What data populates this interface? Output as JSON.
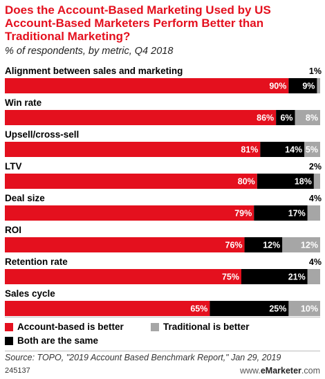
{
  "title": "Does the Account-Based Marketing Used by US Account-Based Marketers Perform Better than Traditional Marketing?",
  "subtitle": "% of respondents, by metric, Q4 2018",
  "source": "Source: TOPO, \"2019 Account Based Benchmark Report,\" Jan 29, 2019",
  "chart_id": "245137",
  "brand_prefix": "www.",
  "brand_name": "eMarketer",
  "brand_suffix": ".com",
  "colors": {
    "account_based": "#e4101e",
    "same": "#000000",
    "traditional": "#a6a6a6"
  },
  "legend": {
    "account_based": "Account-based is better",
    "traditional": "Traditional is better",
    "same": "Both are the same"
  },
  "chart_data": {
    "type": "bar",
    "orientation": "horizontal",
    "stacked": true,
    "categories": [
      "Alignment between sales and marketing",
      "Win rate",
      "Upsell/cross-sell",
      "LTV",
      "Deal size",
      "ROI",
      "Retention rate",
      "Sales cycle"
    ],
    "series": [
      {
        "name": "Account-based is better",
        "values": [
          90,
          86,
          81,
          80,
          79,
          76,
          75,
          65
        ]
      },
      {
        "name": "Both are the same",
        "values": [
          9,
          6,
          14,
          18,
          17,
          12,
          21,
          25
        ]
      },
      {
        "name": "Traditional is better",
        "values": [
          1,
          8,
          5,
          2,
          4,
          12,
          4,
          10
        ]
      }
    ],
    "value_labels": [
      [
        "90%",
        "86%",
        "81%",
        "80%",
        "79%",
        "76%",
        "75%",
        "65%"
      ],
      [
        "9%",
        "6%",
        "14%",
        "18%",
        "17%",
        "12%",
        "21%",
        "25%"
      ],
      [
        "1%",
        "8%",
        "5%",
        "2%",
        "4%",
        "12%",
        "4%",
        "10%"
      ]
    ],
    "xlim": [
      0,
      100
    ],
    "legend_position": "bottom"
  }
}
